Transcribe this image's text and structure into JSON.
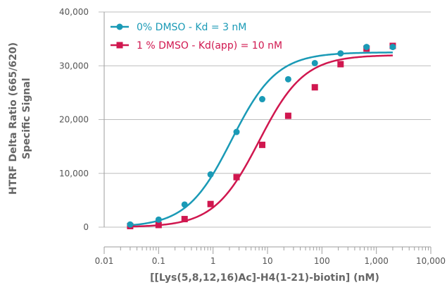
{
  "chart_data": {
    "type": "scatter",
    "title": "",
    "xlabel": "[[Lys(5,8,12,16)Ac]-H4(1-21)-biotin] (nM)",
    "ylabel_lines": [
      "HTRF Delta Ratio (665/620)",
      "Specific Signal"
    ],
    "x_scale": "log",
    "xlim": [
      0.01,
      10000
    ],
    "ylim": [
      0,
      40000
    ],
    "x_ticks": [
      "0.01",
      "0.1",
      "1",
      "10",
      "100",
      "1,000",
      "10,000"
    ],
    "y_ticks": [
      "0",
      "10,000",
      "20,000",
      "30,000",
      "40,000"
    ],
    "grid": "horizontal",
    "legend_position": "top-left",
    "series": [
      {
        "name": "0% DMSO - Kd = 3 nM",
        "color": "#1a9ab6",
        "marker": "circle",
        "x": [
          0.03,
          0.1,
          0.3,
          0.9,
          2.7,
          8,
          24,
          74,
          220,
          660,
          2000
        ],
        "y": [
          500,
          1400,
          4200,
          9800,
          17700,
          23800,
          27500,
          30500,
          32300,
          33500,
          33500
        ],
        "fit": {
          "bottom": 0,
          "top": 32500,
          "ec50": 2.2,
          "hill": 1.05
        }
      },
      {
        "name": "1 % DMSO - Kd(app) = 10 nM",
        "color": "#d0174f",
        "marker": "square",
        "x": [
          0.03,
          0.1,
          0.3,
          0.9,
          2.7,
          8,
          24,
          74,
          220,
          660,
          2000
        ],
        "y": [
          200,
          400,
          1500,
          4300,
          9300,
          15300,
          20700,
          26000,
          30300,
          33200,
          33700
        ],
        "fit": {
          "bottom": 0,
          "top": 32000,
          "ec50": 7.0,
          "hill": 1.05
        }
      }
    ]
  }
}
